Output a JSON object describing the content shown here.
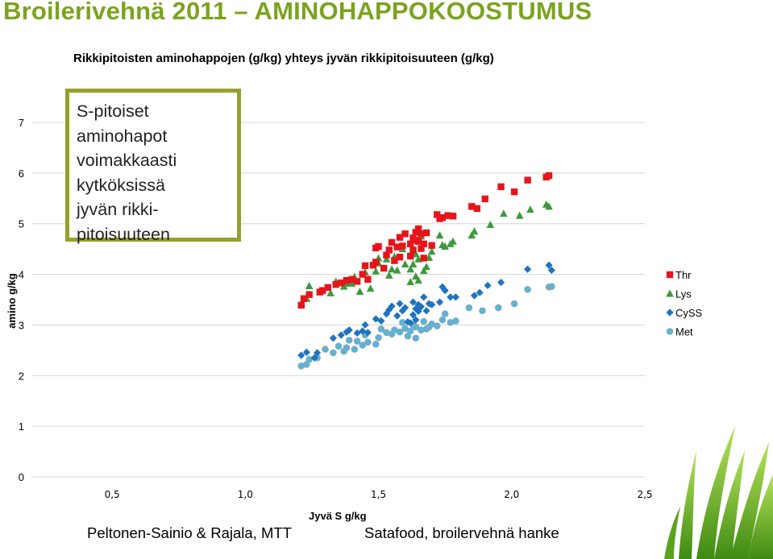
{
  "header": {
    "title": "Broilerivehnä 2011 – AMINOHAPPOKOOSTUMUS",
    "subtitle": "Rikkipitoisten aminohappojen (g/kg) yhteys jyvän rikkipitoisuuteen (g/kg)"
  },
  "callout": {
    "lines": [
      "S-pitoiset",
      "aminohapot",
      "voimakkaasti",
      "kytköksissä",
      "jyvän rikki-",
      "pitoisuuteen"
    ]
  },
  "footer": {
    "left": "Peltonen-Sainio & Rajala, MTT",
    "right": "Satafood, broilervehnä hanke"
  },
  "colors": {
    "title": "#7ba31f",
    "Thr": "#e8141c",
    "Lys": "#3c9a3c",
    "CySS": "#1f74c0",
    "Met": "#5bb4d9",
    "callout_border": "#96a02a"
  },
  "chart_data": {
    "type": "scatter",
    "xlabel": "Jyvä  S g/kg",
    "ylabel": "amino g/kg",
    "xlim": [
      0.2,
      2.5
    ],
    "ylim": [
      0,
      7
    ],
    "x_ticks": [
      "0,5",
      "1,0",
      "1,5",
      "2,0",
      "2,5"
    ],
    "x_tick_values": [
      0.5,
      1.0,
      1.5,
      2.0,
      2.5
    ],
    "y_ticks": [
      "0",
      "1",
      "2",
      "3",
      "4",
      "5",
      "6",
      "7"
    ],
    "y_tick_values": [
      0,
      1,
      2,
      3,
      4,
      5,
      6,
      7
    ],
    "grid": true,
    "legend": "right",
    "series": [
      {
        "name": "Thr",
        "marker": "square",
        "points": [
          [
            1.21,
            3.39
          ],
          [
            1.22,
            3.52
          ],
          [
            1.24,
            3.6
          ],
          [
            1.28,
            3.65
          ],
          [
            1.29,
            3.68
          ],
          [
            1.31,
            3.74
          ],
          [
            1.34,
            3.8
          ],
          [
            1.36,
            3.83
          ],
          [
            1.38,
            3.88
          ],
          [
            1.4,
            3.9
          ],
          [
            1.42,
            3.86
          ],
          [
            1.44,
            4.0
          ],
          [
            1.45,
            4.17
          ],
          [
            1.46,
            3.9
          ],
          [
            1.48,
            4.18
          ],
          [
            1.49,
            4.24
          ],
          [
            1.49,
            4.52
          ],
          [
            1.5,
            4.55
          ],
          [
            1.52,
            4.12
          ],
          [
            1.53,
            4.38
          ],
          [
            1.54,
            4.48
          ],
          [
            1.55,
            4.63
          ],
          [
            1.56,
            4.27
          ],
          [
            1.57,
            4.54
          ],
          [
            1.58,
            4.34
          ],
          [
            1.58,
            4.73
          ],
          [
            1.59,
            4.56
          ],
          [
            1.6,
            4.8
          ],
          [
            1.62,
            4.36
          ],
          [
            1.62,
            4.6
          ],
          [
            1.63,
            4.48
          ],
          [
            1.63,
            4.72
          ],
          [
            1.64,
            4.67
          ],
          [
            1.64,
            4.83
          ],
          [
            1.65,
            4.65
          ],
          [
            1.65,
            4.9
          ],
          [
            1.66,
            4.51
          ],
          [
            1.66,
            4.8
          ],
          [
            1.67,
            4.32
          ],
          [
            1.67,
            4.6
          ],
          [
            1.68,
            4.82
          ],
          [
            1.7,
            4.57
          ],
          [
            1.72,
            5.18
          ],
          [
            1.73,
            5.1
          ],
          [
            1.74,
            5.12
          ],
          [
            1.76,
            5.16
          ],
          [
            1.78,
            5.15
          ],
          [
            1.85,
            5.34
          ],
          [
            1.87,
            5.3
          ],
          [
            1.9,
            5.49
          ],
          [
            1.96,
            5.73
          ],
          [
            2.01,
            5.63
          ],
          [
            2.06,
            5.86
          ],
          [
            2.13,
            5.92
          ],
          [
            2.14,
            5.95
          ]
        ]
      },
      {
        "name": "Lys",
        "marker": "triangle",
        "points": [
          [
            1.21,
            3.42
          ],
          [
            1.23,
            3.52
          ],
          [
            1.24,
            3.77
          ],
          [
            1.28,
            3.66
          ],
          [
            1.32,
            3.63
          ],
          [
            1.34,
            3.86
          ],
          [
            1.37,
            3.76
          ],
          [
            1.38,
            3.82
          ],
          [
            1.4,
            3.82
          ],
          [
            1.41,
            3.95
          ],
          [
            1.43,
            3.66
          ],
          [
            1.45,
            4.04
          ],
          [
            1.47,
            3.72
          ],
          [
            1.49,
            4.06
          ],
          [
            1.5,
            4.32
          ],
          [
            1.5,
            4.22
          ],
          [
            1.53,
            4.3
          ],
          [
            1.54,
            3.98
          ],
          [
            1.55,
            4.1
          ],
          [
            1.56,
            4.35
          ],
          [
            1.57,
            4.08
          ],
          [
            1.59,
            4.5
          ],
          [
            1.6,
            4.2
          ],
          [
            1.62,
            4.1
          ],
          [
            1.62,
            3.85
          ],
          [
            1.63,
            4.2
          ],
          [
            1.64,
            3.96
          ],
          [
            1.64,
            4.4
          ],
          [
            1.65,
            3.88
          ],
          [
            1.65,
            4.3
          ],
          [
            1.66,
            4.75
          ],
          [
            1.67,
            4.07
          ],
          [
            1.68,
            4.15
          ],
          [
            1.69,
            4.33
          ],
          [
            1.7,
            4.45
          ],
          [
            1.73,
            4.77
          ],
          [
            1.74,
            4.58
          ],
          [
            1.75,
            4.55
          ],
          [
            1.77,
            4.6
          ],
          [
            1.78,
            4.65
          ],
          [
            1.85,
            4.77
          ],
          [
            1.86,
            4.85
          ],
          [
            1.92,
            4.98
          ],
          [
            1.97,
            5.2
          ],
          [
            2.03,
            5.16
          ],
          [
            2.07,
            5.28
          ],
          [
            2.13,
            5.38
          ],
          [
            2.14,
            5.34
          ]
        ]
      },
      {
        "name": "CySS",
        "marker": "diamond",
        "points": [
          [
            1.21,
            2.4
          ],
          [
            1.23,
            2.46
          ],
          [
            1.26,
            2.35
          ],
          [
            1.27,
            2.45
          ],
          [
            1.33,
            2.74
          ],
          [
            1.36,
            2.8
          ],
          [
            1.38,
            2.86
          ],
          [
            1.39,
            2.9
          ],
          [
            1.42,
            2.84
          ],
          [
            1.44,
            2.88
          ],
          [
            1.45,
            3.0
          ],
          [
            1.46,
            2.85
          ],
          [
            1.49,
            3.12
          ],
          [
            1.51,
            3.08
          ],
          [
            1.53,
            3.22
          ],
          [
            1.54,
            3.3
          ],
          [
            1.55,
            3.37
          ],
          [
            1.57,
            3.18
          ],
          [
            1.58,
            3.42
          ],
          [
            1.59,
            3.28
          ],
          [
            1.6,
            3.34
          ],
          [
            1.61,
            3.06
          ],
          [
            1.62,
            3.04
          ],
          [
            1.63,
            3.2
          ],
          [
            1.63,
            3.45
          ],
          [
            1.64,
            3.1
          ],
          [
            1.64,
            3.32
          ],
          [
            1.65,
            3.27
          ],
          [
            1.65,
            3.4
          ],
          [
            1.66,
            3.36
          ],
          [
            1.67,
            3.55
          ],
          [
            1.68,
            3.28
          ],
          [
            1.69,
            3.42
          ],
          [
            1.7,
            3.4
          ],
          [
            1.73,
            3.45
          ],
          [
            1.74,
            3.75
          ],
          [
            1.75,
            3.68
          ],
          [
            1.77,
            3.55
          ],
          [
            1.79,
            3.55
          ],
          [
            1.86,
            3.58
          ],
          [
            1.88,
            3.64
          ],
          [
            1.91,
            3.78
          ],
          [
            1.96,
            3.84
          ],
          [
            2.06,
            4.1
          ],
          [
            2.14,
            4.18
          ],
          [
            2.15,
            4.08
          ]
        ]
      },
      {
        "name": "Met",
        "marker": "circle",
        "points": [
          [
            1.21,
            2.19
          ],
          [
            1.23,
            2.22
          ],
          [
            1.24,
            2.32
          ],
          [
            1.27,
            2.35
          ],
          [
            1.3,
            2.52
          ],
          [
            1.33,
            2.45
          ],
          [
            1.35,
            2.58
          ],
          [
            1.37,
            2.48
          ],
          [
            1.38,
            2.55
          ],
          [
            1.39,
            2.7
          ],
          [
            1.41,
            2.52
          ],
          [
            1.42,
            2.68
          ],
          [
            1.44,
            2.6
          ],
          [
            1.45,
            2.8
          ],
          [
            1.46,
            2.66
          ],
          [
            1.49,
            2.62
          ],
          [
            1.5,
            2.75
          ],
          [
            1.51,
            2.92
          ],
          [
            1.53,
            2.85
          ],
          [
            1.55,
            2.82
          ],
          [
            1.56,
            2.9
          ],
          [
            1.58,
            2.86
          ],
          [
            1.59,
            3.05
          ],
          [
            1.6,
            2.93
          ],
          [
            1.61,
            2.78
          ],
          [
            1.62,
            2.88
          ],
          [
            1.63,
            3.0
          ],
          [
            1.64,
            2.74
          ],
          [
            1.64,
            2.96
          ],
          [
            1.66,
            2.9
          ],
          [
            1.67,
            3.07
          ],
          [
            1.68,
            2.92
          ],
          [
            1.69,
            2.96
          ],
          [
            1.7,
            3.02
          ],
          [
            1.72,
            2.98
          ],
          [
            1.74,
            3.1
          ],
          [
            1.75,
            3.22
          ],
          [
            1.77,
            3.05
          ],
          [
            1.79,
            3.08
          ],
          [
            1.84,
            3.34
          ],
          [
            1.89,
            3.28
          ],
          [
            1.95,
            3.34
          ],
          [
            2.01,
            3.42
          ],
          [
            2.06,
            3.7
          ],
          [
            2.14,
            3.75
          ],
          [
            2.15,
            3.76
          ]
        ]
      }
    ]
  }
}
